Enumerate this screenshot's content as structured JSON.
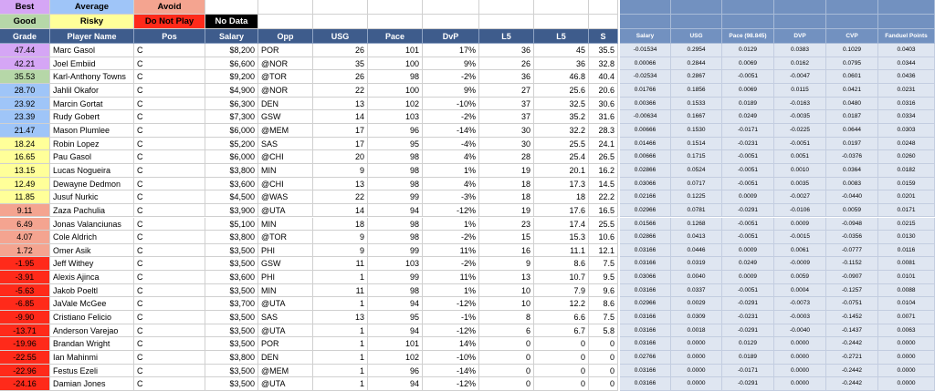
{
  "legend": [
    [
      {
        "label": "Best",
        "color": "#d5a6f5"
      },
      {
        "label": "Average",
        "color": "#9fc5f8"
      },
      {
        "label": "Avoid",
        "color": "#f4a490"
      }
    ],
    [
      {
        "label": "Good",
        "color": "#b6d7a8"
      },
      {
        "label": "Risky",
        "color": "#ffff99"
      },
      {
        "label": "Do Not Play",
        "color": "#ff2a1a"
      },
      {
        "label": "No Data",
        "color": "#000000"
      }
    ]
  ],
  "table": {
    "columns": [
      "Grade",
      "Player Name",
      "Pos",
      "Salary",
      "Opp",
      "USG",
      "Pace",
      "DvP",
      "L5",
      "L5",
      "S",
      "Salary",
      "USG",
      "Pace (98.845)",
      "DVP",
      "CVP",
      "Fanduel Points"
    ],
    "rows": [
      {
        "grade_color": "#d5a6f5",
        "cells": [
          "47.44",
          "Marc Gasol",
          "C",
          "$8,200",
          "POR",
          "26",
          "101",
          "17%",
          "36",
          "45",
          "35.5",
          "-0.01534",
          "0.2954",
          "0.0129",
          "0.0383",
          "0.1029",
          "0.0403"
        ]
      },
      {
        "grade_color": "#d5a6f5",
        "cells": [
          "42.21",
          "Joel Embiid",
          "C",
          "$6,600",
          "@NOR",
          "35",
          "100",
          "9%",
          "26",
          "36",
          "32.8",
          "0.00066",
          "0.2844",
          "0.0069",
          "0.0162",
          "0.0795",
          "0.0344"
        ]
      },
      {
        "grade_color": "#b6d7a8",
        "cells": [
          "35.53",
          "Karl-Anthony Towns",
          "C",
          "$9,200",
          "@TOR",
          "26",
          "98",
          "-2%",
          "36",
          "46.8",
          "40.4",
          "-0.02534",
          "0.2867",
          "-0.0051",
          "-0.0047",
          "0.0601",
          "0.0436"
        ]
      },
      {
        "grade_color": "#9fc5f8",
        "cells": [
          "28.70",
          "Jahlil Okafor",
          "C",
          "$4,900",
          "@NOR",
          "22",
          "100",
          "9%",
          "27",
          "25.6",
          "20.6",
          "0.01766",
          "0.1856",
          "0.0069",
          "0.0115",
          "0.0421",
          "0.0231"
        ]
      },
      {
        "grade_color": "#9fc5f8",
        "cells": [
          "23.92",
          "Marcin Gortat",
          "C",
          "$6,300",
          "DEN",
          "13",
          "102",
          "-10%",
          "37",
          "32.5",
          "30.6",
          "0.00366",
          "0.1533",
          "0.0189",
          "-0.0163",
          "0.0480",
          "0.0316"
        ]
      },
      {
        "grade_color": "#9fc5f8",
        "cells": [
          "23.39",
          "Rudy Gobert",
          "C",
          "$7,300",
          "GSW",
          "14",
          "103",
          "-2%",
          "37",
          "35.2",
          "31.6",
          "-0.00634",
          "0.1667",
          "0.0249",
          "-0.0035",
          "0.0187",
          "0.0334"
        ]
      },
      {
        "grade_color": "#9fc5f8",
        "cells": [
          "21.47",
          "Mason Plumlee",
          "C",
          "$6,000",
          "@MEM",
          "17",
          "96",
          "-14%",
          "30",
          "32.2",
          "28.3",
          "0.00666",
          "0.1530",
          "-0.0171",
          "-0.0225",
          "0.0644",
          "0.0303"
        ]
      },
      {
        "grade_color": "#ffff99",
        "cells": [
          "18.24",
          "Robin Lopez",
          "C",
          "$5,200",
          "SAS",
          "17",
          "95",
          "-4%",
          "30",
          "25.5",
          "24.1",
          "0.01466",
          "0.1514",
          "-0.0231",
          "-0.0051",
          "0.0197",
          "0.0248"
        ]
      },
      {
        "grade_color": "#ffff99",
        "cells": [
          "16.65",
          "Pau Gasol",
          "C",
          "$6,000",
          "@CHI",
          "20",
          "98",
          "4%",
          "28",
          "25.4",
          "26.5",
          "0.00666",
          "0.1715",
          "-0.0051",
          "0.0051",
          "-0.0376",
          "0.0260"
        ]
      },
      {
        "grade_color": "#ffff99",
        "cells": [
          "13.15",
          "Lucas Nogueira",
          "C",
          "$3,800",
          "MIN",
          "9",
          "98",
          "1%",
          "19",
          "20.1",
          "16.2",
          "0.02866",
          "0.0524",
          "-0.0051",
          "0.0010",
          "0.0364",
          "0.0182"
        ]
      },
      {
        "grade_color": "#ffff99",
        "cells": [
          "12.49",
          "Dewayne Dedmon",
          "C",
          "$3,600",
          "@CHI",
          "13",
          "98",
          "4%",
          "18",
          "17.3",
          "14.5",
          "0.03066",
          "0.0717",
          "-0.0051",
          "0.0035",
          "0.0083",
          "0.0159"
        ]
      },
      {
        "grade_color": "#ffff99",
        "cells": [
          "11.85",
          "Jusuf Nurkic",
          "C",
          "$4,500",
          "@WAS",
          "22",
          "99",
          "-3%",
          "18",
          "18",
          "22.2",
          "0.02166",
          "0.1225",
          "0.0009",
          "-0.0027",
          "-0.0440",
          "0.0201"
        ]
      },
      {
        "grade_color": "#f4a490",
        "cells": [
          "9.11",
          "Zaza Pachulia",
          "C",
          "$3,900",
          "@UTA",
          "14",
          "94",
          "-12%",
          "19",
          "17.6",
          "16.5",
          "0.02966",
          "0.0781",
          "-0.0291",
          "-0.0106",
          "0.0059",
          "0.0171"
        ]
      },
      {
        "grade_color": "#f4a490",
        "cells": [
          "6.49",
          "Jonas Valanciunas",
          "C",
          "$5,100",
          "MIN",
          "18",
          "98",
          "1%",
          "23",
          "17.4",
          "25.5",
          "0.01566",
          "0.1268",
          "-0.0051",
          "0.0009",
          "-0.0948",
          "0.0215"
        ]
      },
      {
        "grade_color": "#f4a490",
        "cells": [
          "4.07",
          "Cole Aldrich",
          "C",
          "$3,800",
          "@TOR",
          "9",
          "98",
          "-2%",
          "15",
          "15.3",
          "10.6",
          "0.02866",
          "0.0413",
          "-0.0051",
          "-0.0015",
          "-0.0356",
          "0.0130"
        ]
      },
      {
        "grade_color": "#f4a490",
        "cells": [
          "1.72",
          "Omer Asik",
          "C",
          "$3,500",
          "PHI",
          "9",
          "99",
          "11%",
          "16",
          "11.1",
          "12.1",
          "0.03166",
          "0.0446",
          "0.0009",
          "0.0061",
          "-0.0777",
          "0.0116"
        ]
      },
      {
        "grade_color": "#ff2a1a",
        "cells": [
          "-1.95",
          "Jeff Withey",
          "C",
          "$3,500",
          "GSW",
          "11",
          "103",
          "-2%",
          "9",
          "8.6",
          "7.5",
          "0.03166",
          "0.0319",
          "0.0249",
          "-0.0009",
          "-0.1152",
          "0.0081"
        ]
      },
      {
        "grade_color": "#ff2a1a",
        "cells": [
          "-3.91",
          "Alexis Ajinca",
          "C",
          "$3,600",
          "PHI",
          "1",
          "99",
          "11%",
          "13",
          "10.7",
          "9.5",
          "0.03066",
          "0.0040",
          "0.0009",
          "0.0059",
          "-0.0907",
          "0.0101"
        ]
      },
      {
        "grade_color": "#ff2a1a",
        "cells": [
          "-5.63",
          "Jakob Poeltl",
          "C",
          "$3,500",
          "MIN",
          "11",
          "98",
          "1%",
          "10",
          "7.9",
          "9.6",
          "0.03166",
          "0.0337",
          "-0.0051",
          "0.0004",
          "-0.1257",
          "0.0088"
        ]
      },
      {
        "grade_color": "#ff2a1a",
        "cells": [
          "-6.85",
          "JaVale McGee",
          "C",
          "$3,700",
          "@UTA",
          "1",
          "94",
          "-12%",
          "10",
          "12.2",
          "8.6",
          "0.02966",
          "0.0029",
          "-0.0291",
          "-0.0073",
          "-0.0751",
          "0.0104"
        ]
      },
      {
        "grade_color": "#ff2a1a",
        "cells": [
          "-9.90",
          "Cristiano Felicio",
          "C",
          "$3,500",
          "SAS",
          "13",
          "95",
          "-1%",
          "8",
          "6.6",
          "7.5",
          "0.03166",
          "0.0309",
          "-0.0231",
          "-0.0003",
          "-0.1452",
          "0.0071"
        ]
      },
      {
        "grade_color": "#ff2a1a",
        "cells": [
          "-13.71",
          "Anderson Varejao",
          "C",
          "$3,500",
          "@UTA",
          "1",
          "94",
          "-12%",
          "6",
          "6.7",
          "5.8",
          "0.03166",
          "0.0018",
          "-0.0291",
          "-0.0040",
          "-0.1437",
          "0.0063"
        ]
      },
      {
        "grade_color": "#ff2a1a",
        "cells": [
          "-19.96",
          "Brandan Wright",
          "C",
          "$3,500",
          "POR",
          "1",
          "101",
          "14%",
          "0",
          "0",
          "0",
          "0.03166",
          "0.0000",
          "0.0129",
          "0.0000",
          "-0.2442",
          "0.0000"
        ]
      },
      {
        "grade_color": "#ff2a1a",
        "cells": [
          "-22.55",
          "Ian Mahinmi",
          "C",
          "$3,800",
          "DEN",
          "1",
          "102",
          "-10%",
          "0",
          "0",
          "0",
          "0.02766",
          "0.0000",
          "0.0189",
          "0.0000",
          "-0.2721",
          "0.0000"
        ]
      },
      {
        "grade_color": "#ff2a1a",
        "cells": [
          "-22.96",
          "Festus Ezeli",
          "C",
          "$3,500",
          "@MEM",
          "1",
          "96",
          "-14%",
          "0",
          "0",
          "0",
          "0.03166",
          "0.0000",
          "-0.0171",
          "0.0000",
          "-0.2442",
          "0.0000"
        ]
      },
      {
        "grade_color": "#ff2a1a",
        "cells": [
          "-24.16",
          "Damian Jones",
          "C",
          "$3,500",
          "@UTA",
          "1",
          "94",
          "-12%",
          "0",
          "0",
          "0",
          "0.03166",
          "0.0000",
          "-0.0291",
          "0.0000",
          "-0.2442",
          "0.0000"
        ]
      }
    ]
  }
}
